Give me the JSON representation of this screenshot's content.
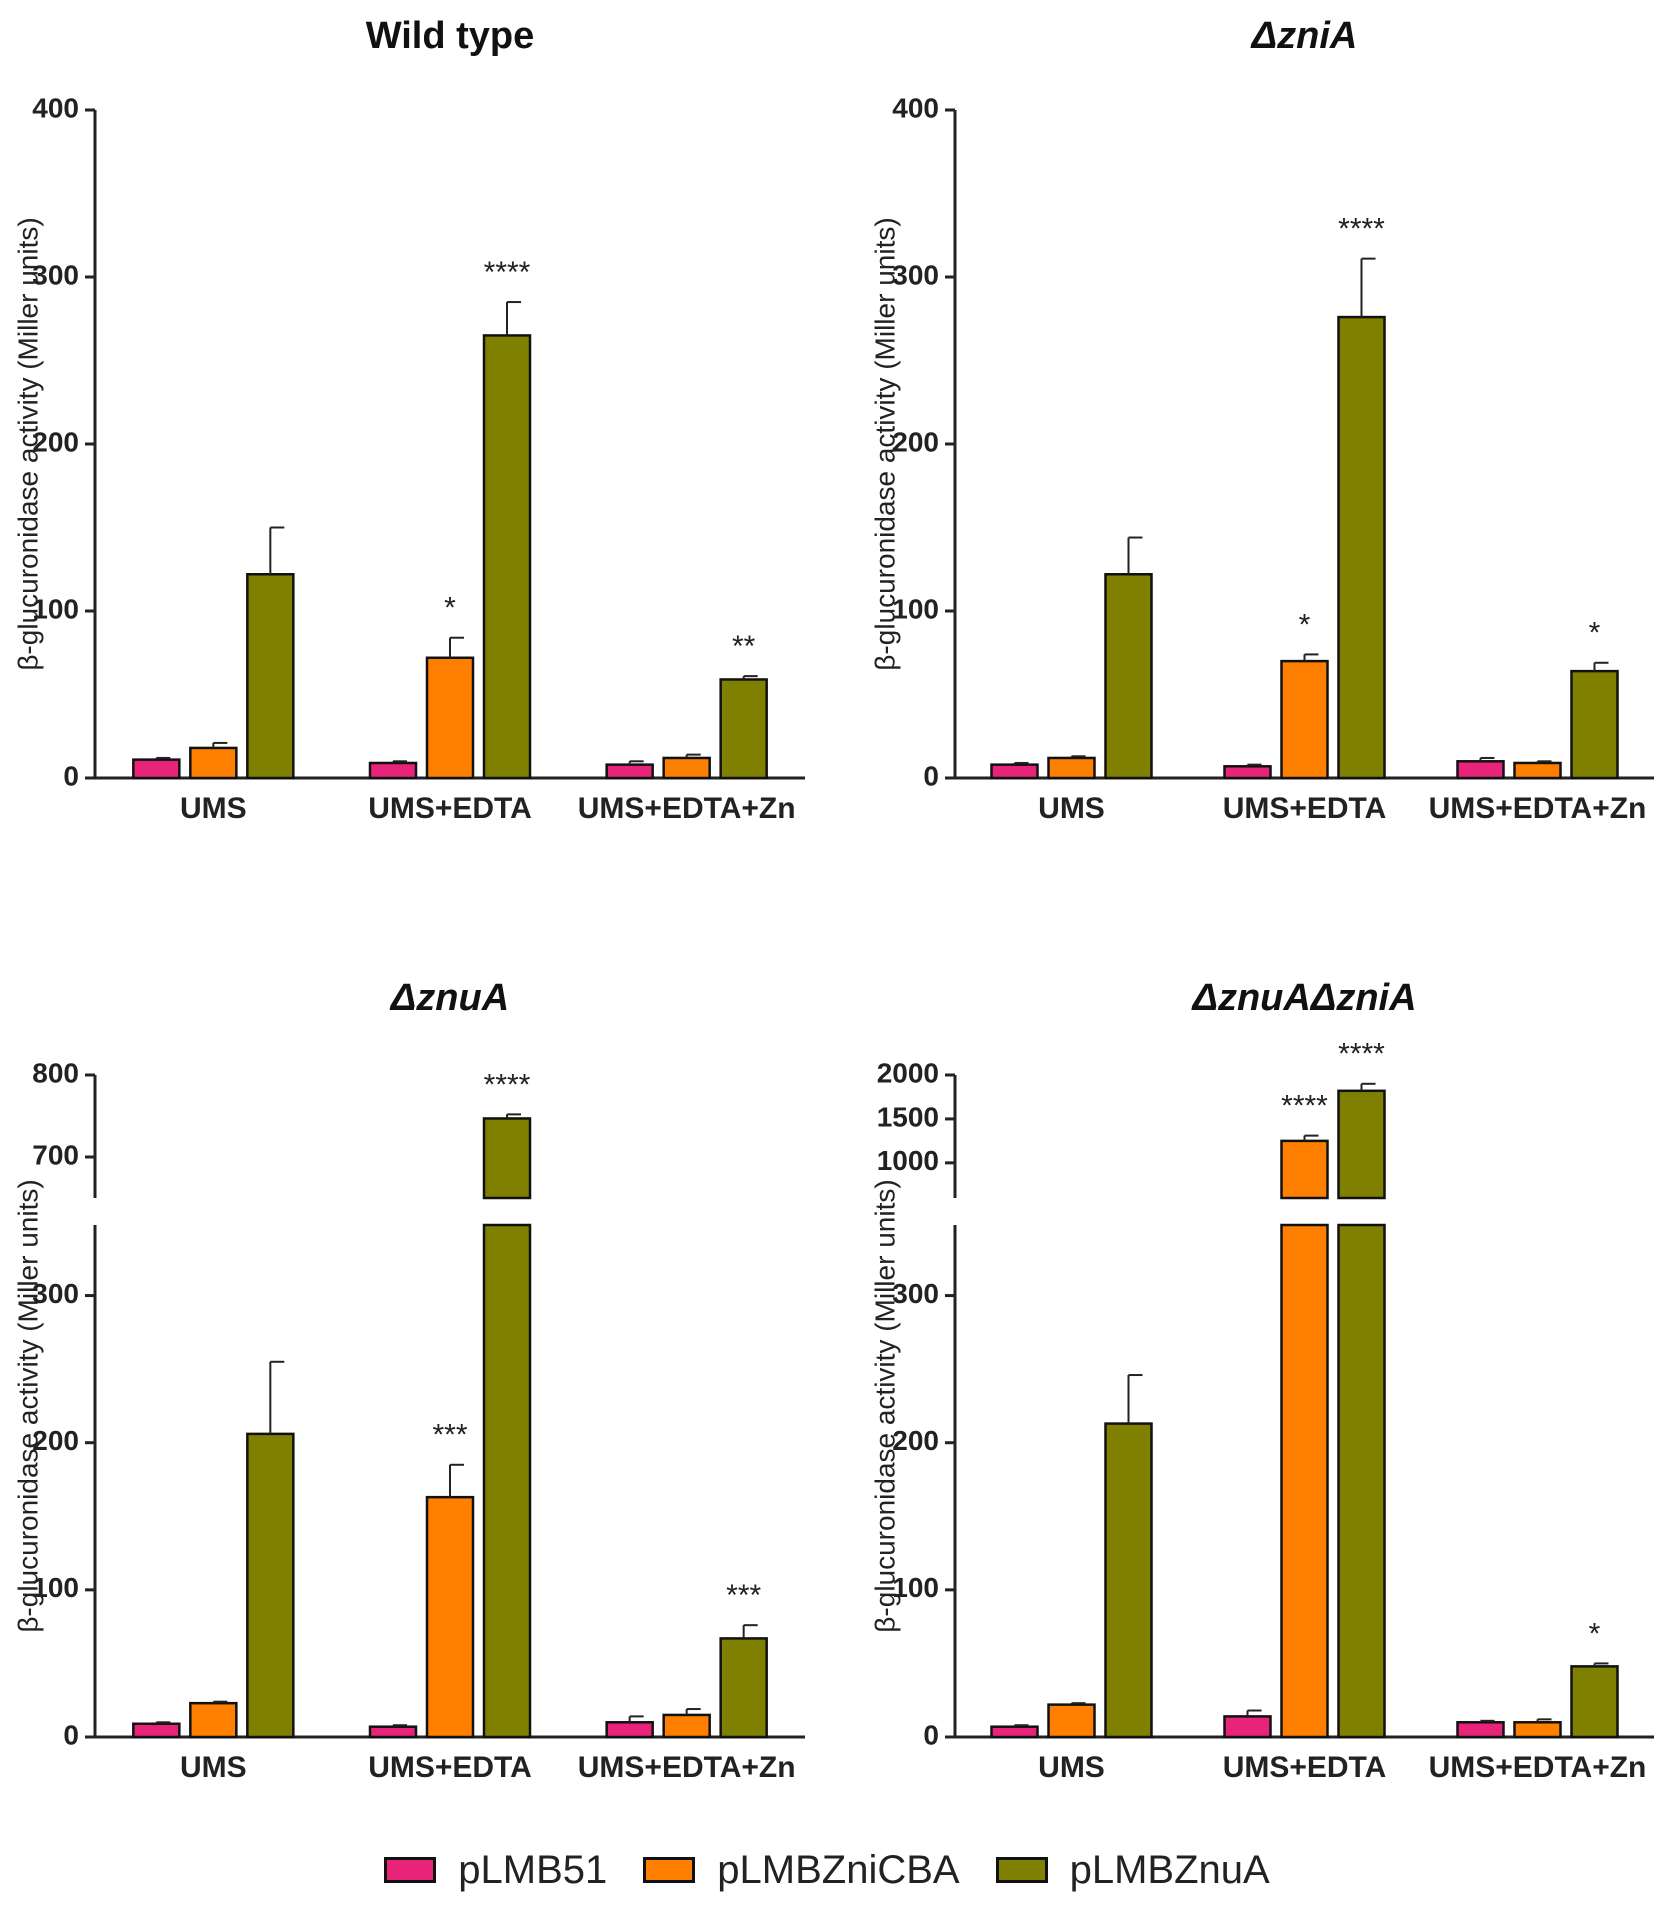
{
  "legend": [
    {
      "label": "pLMB51",
      "color": "#e8247a"
    },
    {
      "label": "pLMBZniCBA",
      "color": "#ff8000"
    },
    {
      "label": "pLMBZnuA",
      "color": "#808000"
    }
  ],
  "chart_data": [
    {
      "type": "bar",
      "title": "Wild type",
      "ylabel": "β-glucuronidase activity (Miller units)",
      "ylim": [
        0,
        400
      ],
      "yticks": [
        0,
        100,
        200,
        300,
        400
      ],
      "categories": [
        "UMS",
        "UMS+EDTA",
        "UMS+EDTA+Zn"
      ],
      "series": [
        {
          "name": "pLMB51",
          "values": [
            11,
            9,
            8
          ],
          "errors": [
            1,
            1,
            2
          ]
        },
        {
          "name": "pLMBZniCBA",
          "values": [
            18,
            72,
            12
          ],
          "errors": [
            3,
            12,
            2
          ]
        },
        {
          "name": "pLMBZnuA",
          "values": [
            122,
            265,
            59
          ],
          "errors": [
            28,
            20,
            2
          ]
        }
      ],
      "significance": [
        [
          "",
          "",
          ""
        ],
        [
          "",
          "*",
          ""
        ],
        [
          "",
          "****",
          "**"
        ]
      ]
    },
    {
      "type": "bar",
      "title": "ΔzniA",
      "ylabel": "β-glucuronidase activity (Miller units)",
      "ylim": [
        0,
        400
      ],
      "yticks": [
        0,
        100,
        200,
        300,
        400
      ],
      "categories": [
        "UMS",
        "UMS+EDTA",
        "UMS+EDTA+Zn"
      ],
      "series": [
        {
          "name": "pLMB51",
          "values": [
            8,
            7,
            10
          ],
          "errors": [
            1,
            1,
            2
          ]
        },
        {
          "name": "pLMBZniCBA",
          "values": [
            12,
            70,
            9
          ],
          "errors": [
            1,
            4,
            1
          ]
        },
        {
          "name": "pLMBZnuA",
          "values": [
            122,
            276,
            64
          ],
          "errors": [
            22,
            35,
            5
          ]
        }
      ],
      "significance": [
        [
          "",
          "",
          ""
        ],
        [
          "",
          "*",
          ""
        ],
        [
          "",
          "****",
          "*"
        ]
      ]
    },
    {
      "type": "bar",
      "title": "ΔznuA",
      "ylabel": "β-glucuronidase activity (Miller units)",
      "ylim": [
        0,
        350
      ],
      "yticks": [
        0,
        100,
        200,
        300
      ],
      "axis_break": {
        "upper_range": [
          650,
          800
        ],
        "upper_ticks": [
          700,
          800
        ]
      },
      "categories": [
        "UMS",
        "UMS+EDTA",
        "UMS+EDTA+Zn"
      ],
      "series": [
        {
          "name": "pLMB51",
          "values": [
            9,
            7,
            10
          ],
          "errors": [
            1,
            1,
            4
          ]
        },
        {
          "name": "pLMBZniCBA",
          "values": [
            23,
            163,
            15
          ],
          "errors": [
            1,
            22,
            4
          ]
        },
        {
          "name": "pLMBZnuA",
          "values": [
            206,
            747,
            67
          ],
          "errors": [
            49,
            5,
            9
          ]
        }
      ],
      "significance": [
        [
          "",
          "",
          ""
        ],
        [
          "",
          "***",
          ""
        ],
        [
          "",
          "****",
          "***"
        ]
      ]
    },
    {
      "type": "bar",
      "title": "ΔznuAΔzniA",
      "ylabel": "β-glucuronidase activity (Miller units)",
      "ylim": [
        0,
        350
      ],
      "yticks": [
        0,
        100,
        200,
        300
      ],
      "axis_break": {
        "upper_range": [
          600,
          2000
        ],
        "upper_ticks": [
          1000,
          1500,
          2000
        ]
      },
      "categories": [
        "UMS",
        "UMS+EDTA",
        "UMS+EDTA+Zn"
      ],
      "series": [
        {
          "name": "pLMB51",
          "values": [
            7,
            14,
            10
          ],
          "errors": [
            1,
            4,
            1
          ]
        },
        {
          "name": "pLMBZniCBA",
          "values": [
            22,
            1250,
            10
          ],
          "errors": [
            1,
            60,
            2
          ]
        },
        {
          "name": "pLMBZnuA",
          "values": [
            213,
            1820,
            48
          ],
          "errors": [
            33,
            80,
            2
          ]
        }
      ],
      "significance": [
        [
          "",
          "",
          ""
        ],
        [
          "",
          "****",
          ""
        ],
        [
          "",
          "****",
          "*"
        ]
      ]
    }
  ]
}
